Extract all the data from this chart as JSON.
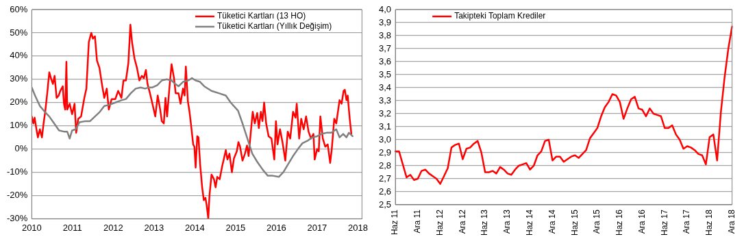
{
  "chart_data": [
    {
      "type": "line",
      "xlim": [
        2010,
        2018.1
      ],
      "xticks": [
        2010,
        2011,
        2012,
        2013,
        2014,
        2015,
        2016,
        2017,
        2018
      ],
      "ylim": [
        -30,
        60
      ],
      "yticks": [
        {
          "value": -30,
          "label": "-30%"
        },
        {
          "value": -20,
          "label": "-20%"
        },
        {
          "value": -10,
          "label": "-10%"
        },
        {
          "value": 0,
          "label": "0%"
        },
        {
          "value": 10,
          "label": "10%"
        },
        {
          "value": 20,
          "label": "20%"
        },
        {
          "value": 30,
          "label": "30%"
        },
        {
          "value": 40,
          "label": "40%"
        },
        {
          "value": 50,
          "label": "50%"
        },
        {
          "value": 60,
          "label": "60%"
        }
      ],
      "grid": "y",
      "legend": "top right",
      "marker": "none",
      "line_style": "solid",
      "series": [
        {
          "name": "Tüketici Kartları (13 HO)",
          "color": "#ff0000",
          "x": [
            2010.0,
            2010.04,
            2010.07,
            2010.11,
            2010.15,
            2010.2,
            2010.25,
            2010.29,
            2010.33,
            2010.38,
            2010.43,
            2010.48,
            2010.52,
            2010.56,
            2010.61,
            2010.66,
            2010.7,
            2010.76,
            2010.79,
            2010.82,
            2010.85,
            2010.87,
            2010.93,
            2010.99,
            2011.05,
            2011.09,
            2011.14,
            2011.21,
            2011.29,
            2011.34,
            2011.4,
            2011.46,
            2011.5,
            2011.55,
            2011.6,
            2011.66,
            2011.73,
            2011.78,
            2011.84,
            2011.89,
            2011.96,
            2012.05,
            2012.12,
            2012.2,
            2012.25,
            2012.31,
            2012.37,
            2012.42,
            2012.46,
            2012.52,
            2012.58,
            2012.64,
            2012.7,
            2012.75,
            2012.8,
            2012.84,
            2012.9,
            2012.96,
            2013.03,
            2013.09,
            2013.15,
            2013.19,
            2013.24,
            2013.28,
            2013.32,
            2013.38,
            2013.43,
            2013.49,
            2013.53,
            2013.6,
            2013.65,
            2013.71,
            2013.75,
            2013.78,
            2013.83,
            2013.87,
            2013.91,
            2013.96,
            2013.99,
            2014.02,
            2014.06,
            2014.09,
            2014.13,
            2014.18,
            2014.22,
            2014.26,
            2014.29,
            2014.33,
            2014.36,
            2014.41,
            2014.47,
            2014.51,
            2014.55,
            2014.61,
            2014.67,
            2014.71,
            2014.76,
            2014.8,
            2014.85,
            2014.91,
            2014.96,
            2015.03,
            2015.07,
            2015.11,
            2015.17,
            2015.23,
            2015.28,
            2015.32,
            2015.38,
            2015.42,
            2015.47,
            2015.53,
            2015.57,
            2015.62,
            2015.66,
            2015.7,
            2015.75,
            2015.81,
            2015.88,
            2015.95,
            2015.99,
            2016.03,
            2016.09,
            2016.15,
            2016.22,
            2016.28,
            2016.34,
            2016.41,
            2016.47,
            2016.5,
            2016.56,
            2016.61,
            2016.67,
            2016.73,
            2016.79,
            2016.85,
            2016.91,
            2016.94,
            2017.0,
            2017.04,
            2017.08,
            2017.14,
            2017.2,
            2017.26,
            2017.32,
            2017.36,
            2017.42,
            2017.47,
            2017.55,
            2017.6,
            2017.65,
            2017.68,
            2017.72,
            2017.75,
            2017.8,
            2017.84
          ],
          "values": [
            14,
            11,
            13.5,
            9,
            5,
            8.5,
            5,
            11,
            16,
            24,
            33,
            30,
            28,
            31.5,
            22,
            23,
            25,
            27,
            19.5,
            17,
            37.5,
            17,
            19.5,
            15,
            19.5,
            7,
            13,
            14,
            22,
            26,
            46,
            50,
            47.5,
            48.5,
            38,
            35,
            27,
            22,
            26,
            17,
            21.5,
            21.5,
            25,
            22,
            29.5,
            29.5,
            37,
            53.5,
            46,
            39,
            35,
            29.5,
            31.5,
            30.5,
            34,
            28,
            24,
            19.5,
            14,
            23,
            17,
            12,
            11,
            22,
            14,
            27,
            36.5,
            30.5,
            24,
            24,
            19.5,
            26,
            23,
            35.5,
            20.5,
            16,
            10,
            2,
            1,
            -8,
            5.5,
            5,
            -6.5,
            -16.5,
            -22,
            -21,
            -24,
            -30,
            -20,
            -11,
            -13,
            -16.5,
            -12,
            -13,
            -7.5,
            -4.5,
            -0.5,
            -4.5,
            -2,
            -10,
            -4,
            -1,
            3,
            1,
            -5,
            -2,
            1.5,
            -3,
            8.5,
            16,
            11,
            15.5,
            9,
            16,
            12,
            20,
            11,
            5.5,
            4.5,
            -4.5,
            12,
            2,
            8.5,
            3,
            -5,
            7.5,
            4.5,
            16,
            13.5,
            19.5,
            4.5,
            13,
            8.5,
            14,
            7.5,
            4.5,
            6.5,
            -4.5,
            0,
            -1,
            14,
            4.5,
            1,
            2,
            -6,
            0,
            13,
            11,
            21,
            19.5,
            25,
            25.5,
            21,
            23,
            13,
            6.5
          ]
        },
        {
          "name": "Tüketici Kartları (Yıllık Değişim)",
          "color": "#808080",
          "x": [
            2010.0,
            2010.08,
            2010.2,
            2010.32,
            2010.43,
            2010.55,
            2010.67,
            2010.79,
            2010.87,
            2010.93,
            2010.99,
            2011.08,
            2011.17,
            2011.32,
            2011.43,
            2011.55,
            2011.67,
            2011.78,
            2011.9,
            2012.05,
            2012.2,
            2012.31,
            2012.43,
            2012.55,
            2012.67,
            2012.78,
            2012.87,
            2012.96,
            2013.08,
            2013.19,
            2013.31,
            2013.43,
            2013.52,
            2013.6,
            2013.72,
            2013.84,
            2013.93,
            2014.02,
            2014.12,
            2014.23,
            2014.41,
            2014.59,
            2014.76,
            2014.88,
            2015.06,
            2015.17,
            2015.29,
            2015.41,
            2015.53,
            2015.67,
            2015.79,
            2015.91,
            2016.06,
            2016.17,
            2016.29,
            2016.41,
            2016.53,
            2016.64,
            2016.76,
            2016.88,
            2017.0,
            2017.11,
            2017.23,
            2017.35,
            2017.47,
            2017.55,
            2017.64,
            2017.72,
            2017.78,
            2017.87
          ],
          "values": [
            26.5,
            23,
            18.5,
            16,
            14,
            11,
            8,
            7.5,
            7.5,
            4.5,
            8,
            8.5,
            11.5,
            12,
            12,
            14,
            16,
            18.5,
            19,
            20,
            21,
            21.5,
            24,
            26,
            26.5,
            26,
            26.5,
            26.5,
            27.5,
            29.5,
            30,
            29.5,
            28,
            27,
            29,
            29.5,
            30.5,
            29.5,
            29,
            27,
            25,
            24,
            23,
            20,
            16.5,
            11,
            4.5,
            -2,
            -5.5,
            -9,
            -11.5,
            -11.5,
            -12,
            -10,
            -6.5,
            -3,
            0,
            2.5,
            3.5,
            5,
            5.5,
            6.5,
            7,
            7,
            8.5,
            5,
            6.5,
            5,
            7,
            5.5
          ]
        }
      ]
    },
    {
      "type": "line",
      "categories": [
        "Haz 11",
        null,
        null,
        null,
        null,
        null,
        "Ara 11",
        null,
        null,
        null,
        null,
        null,
        "Haz 12",
        null,
        null,
        null,
        null,
        null,
        "Ara 12",
        null,
        null,
        null,
        null,
        null,
        "Haz 13",
        null,
        null,
        null,
        null,
        null,
        "Ara 13",
        null,
        null,
        null,
        null,
        null,
        "Haz 14",
        null,
        null,
        null,
        null,
        null,
        "Ara 14",
        null,
        null,
        null,
        null,
        null,
        "Haz 15",
        null,
        null,
        null,
        null,
        null,
        "Ara 15",
        null,
        null,
        null,
        null,
        null,
        "Haz 16",
        null,
        null,
        null,
        null,
        null,
        "Ara 16",
        null,
        null,
        null,
        null,
        null,
        "Haz 17",
        null,
        null,
        null,
        null,
        null,
        "Ara 17",
        null,
        null,
        null,
        null,
        null,
        "Haz 18",
        null,
        null,
        null,
        null,
        null,
        "Ara 18"
      ],
      "ylim": [
        2.5,
        4.0
      ],
      "yticks": [
        {
          "value": 2.5,
          "label": "2,5"
        },
        {
          "value": 2.6,
          "label": "2,6"
        },
        {
          "value": 2.7,
          "label": "2,7"
        },
        {
          "value": 2.8,
          "label": "2,8"
        },
        {
          "value": 2.9,
          "label": "2,9"
        },
        {
          "value": 3.0,
          "label": "3,0"
        },
        {
          "value": 3.1,
          "label": "3,1"
        },
        {
          "value": 3.2,
          "label": "3,2"
        },
        {
          "value": 3.3,
          "label": "3,3"
        },
        {
          "value": 3.4,
          "label": "3,4"
        },
        {
          "value": 3.5,
          "label": "3,5"
        },
        {
          "value": 3.6,
          "label": "3,6"
        },
        {
          "value": 3.7,
          "label": "3,7"
        },
        {
          "value": 3.8,
          "label": "3,8"
        },
        {
          "value": 3.9,
          "label": "3,9"
        },
        {
          "value": 4.0,
          "label": "4,0"
        }
      ],
      "grid": "y",
      "legend": "top left",
      "marker": "none",
      "line_style": "solid",
      "series": [
        {
          "name": "Takipteki Toplam Krediler",
          "color": "#ff0000",
          "values": [
            2.91,
            2.91,
            2.81,
            2.71,
            2.73,
            2.69,
            2.7,
            2.76,
            2.77,
            2.74,
            2.72,
            2.7,
            2.66,
            2.72,
            2.78,
            2.94,
            2.96,
            2.97,
            2.85,
            2.93,
            2.94,
            2.97,
            2.99,
            2.9,
            2.75,
            2.75,
            2.76,
            2.74,
            2.79,
            2.77,
            2.74,
            2.73,
            2.77,
            2.8,
            2.81,
            2.82,
            2.77,
            2.8,
            2.88,
            2.91,
            2.99,
            3.0,
            2.84,
            2.87,
            2.87,
            2.83,
            2.85,
            2.87,
            2.88,
            2.86,
            2.89,
            2.92,
            3.01,
            3.05,
            3.09,
            3.18,
            3.25,
            3.29,
            3.35,
            3.34,
            3.29,
            3.16,
            3.24,
            3.31,
            3.33,
            3.24,
            3.23,
            3.18,
            3.24,
            3.2,
            3.19,
            3.18,
            3.09,
            3.09,
            3.11,
            3.04,
            3.0,
            2.93,
            2.95,
            2.94,
            2.92,
            2.89,
            2.88,
            2.81,
            3.02,
            3.04,
            2.84,
            3.21,
            3.48,
            3.7,
            3.87
          ]
        }
      ]
    }
  ]
}
